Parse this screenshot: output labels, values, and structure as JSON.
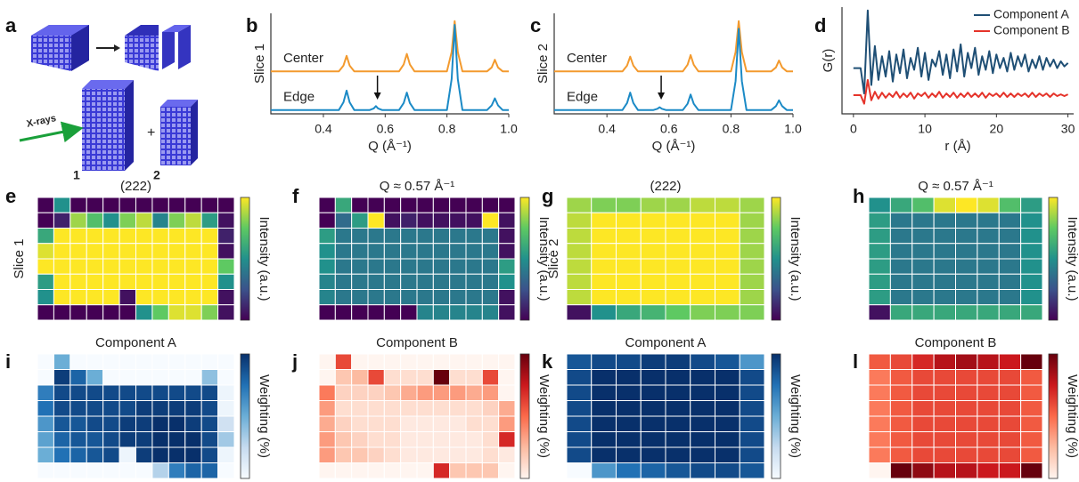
{
  "schematic": {
    "panel": "a",
    "xray_label": "X-rays",
    "slice_labels": [
      "1",
      "2"
    ],
    "plus": "+"
  },
  "chart_data": [
    {
      "type": "line",
      "panel": "b",
      "ylabel": "Slice 1",
      "xlabel": "Q (Å⁻¹)",
      "series_labels": "inline",
      "xlim": [
        0.23,
        1.0
      ],
      "ylim": [
        -0.1,
        2.5
      ],
      "xticks": [
        0.4,
        0.6,
        0.8,
        {
          "value": 1.0,
          "label": "1.0"
        }
      ],
      "arrow_x": [
        0.575
      ],
      "x": [
        0.23,
        0.45,
        0.465,
        0.475,
        0.485,
        0.5,
        0.55,
        0.563,
        0.57,
        0.577,
        0.59,
        0.645,
        0.66,
        0.67,
        0.68,
        0.695,
        0.8,
        0.815,
        0.825,
        0.835,
        0.85,
        0.93,
        0.945,
        0.955,
        0.965,
        0.98,
        1.0
      ],
      "series": [
        {
          "name": "Center",
          "color": "#f39a2e",
          "values": [
            1,
            1,
            1.15,
            1.4,
            1.15,
            1,
            1,
            1,
            1,
            1,
            1,
            1,
            1.18,
            1.45,
            1.18,
            1,
            1,
            1.5,
            2.3,
            1.5,
            1,
            1,
            1.1,
            1.3,
            1.1,
            1,
            1
          ]
        },
        {
          "name": "Edge",
          "color": "#1b8ac6",
          "values": [
            0,
            0,
            0.2,
            0.5,
            0.2,
            0,
            0,
            0.04,
            0.1,
            0.04,
            0,
            0,
            0.18,
            0.45,
            0.18,
            0,
            0,
            0.8,
            2.2,
            0.8,
            0,
            0,
            0.12,
            0.3,
            0.12,
            0,
            0
          ]
        }
      ]
    },
    {
      "type": "line",
      "panel": "c",
      "ylabel": "Slice 2",
      "xlabel": "Q (Å⁻¹)",
      "series_labels": "inline",
      "xlim": [
        0.23,
        1.0
      ],
      "ylim": [
        -0.1,
        2.5
      ],
      "xticks": [
        0.4,
        0.6,
        0.8,
        {
          "value": 1.0,
          "label": "1.0"
        }
      ],
      "arrow_x": [
        0.575
      ],
      "x": [
        0.23,
        0.45,
        0.465,
        0.475,
        0.485,
        0.5,
        0.55,
        0.563,
        0.57,
        0.577,
        0.59,
        0.645,
        0.66,
        0.67,
        0.68,
        0.695,
        0.8,
        0.815,
        0.825,
        0.835,
        0.85,
        0.93,
        0.945,
        0.955,
        0.965,
        0.98,
        1.0
      ],
      "series": [
        {
          "name": "Center",
          "color": "#f39a2e",
          "values": [
            1,
            1,
            1.15,
            1.38,
            1.15,
            1,
            1,
            1,
            1,
            1,
            1,
            1,
            1.17,
            1.42,
            1.17,
            1,
            1,
            1.5,
            2.3,
            1.5,
            1,
            1,
            1.1,
            1.28,
            1.1,
            1,
            1
          ]
        },
        {
          "name": "Edge",
          "color": "#1b8ac6",
          "values": [
            0,
            0,
            0.18,
            0.45,
            0.18,
            0,
            0,
            0.03,
            0.07,
            0.03,
            0,
            0,
            0.16,
            0.4,
            0.16,
            0,
            0,
            0.75,
            2.1,
            0.75,
            0,
            0,
            0.1,
            0.25,
            0.1,
            0,
            0
          ]
        }
      ]
    },
    {
      "type": "line",
      "panel": "d",
      "ylabel": "G(r)",
      "xlabel": "r (Å)",
      "legend": "upper right",
      "xlim": [
        -1.6,
        30.8
      ],
      "ylim": [
        -0.2,
        6.1
      ],
      "xticks": [
        0,
        10,
        20,
        30
      ],
      "x": [
        0,
        0.5,
        1,
        1.5,
        2,
        2.5,
        3,
        3.5,
        4,
        4.5,
        5,
        5.5,
        6,
        6.5,
        7,
        7.5,
        8,
        8.5,
        9,
        9.5,
        10,
        10.5,
        11,
        11.5,
        12,
        12.5,
        13,
        13.5,
        14,
        14.5,
        15,
        15.5,
        16,
        16.5,
        17,
        17.5,
        18,
        18.5,
        19,
        19.5,
        20,
        20.5,
        21,
        21.5,
        22,
        22.5,
        23,
        23.5,
        24,
        24.5,
        25,
        25.5,
        26,
        26.5,
        27,
        27.5,
        28,
        28.5,
        29,
        29.5,
        30
      ],
      "series": [
        {
          "name": "Component A",
          "color": "#1f4f75",
          "values": [
            2.5,
            2.5,
            2.5,
            1.0,
            5.9,
            1.5,
            3.8,
            1.8,
            3.2,
            2.0,
            3.5,
            1.7,
            3.3,
            2.2,
            3.6,
            1.9,
            3.1,
            2.4,
            3.7,
            2.0,
            3.4,
            1.8,
            3.0,
            2.6,
            3.5,
            2.1,
            3.3,
            1.9,
            3.6,
            2.3,
            3.9,
            2.0,
            3.4,
            2.5,
            3.7,
            2.1,
            3.2,
            2.4,
            3.5,
            2.2,
            3.3,
            2.5,
            3.1,
            2.3,
            3.4,
            2.4,
            3.2,
            2.6,
            3.3,
            2.3,
            3.0,
            2.5,
            3.2,
            2.4,
            3.1,
            2.6,
            3.0,
            2.5,
            2.9,
            2.6,
            2.8
          ]
        },
        {
          "name": "Component B",
          "color": "#e5332a",
          "values": [
            0.9,
            0.9,
            0.9,
            0.4,
            1.8,
            0.6,
            1.1,
            0.7,
            1.05,
            0.75,
            1.0,
            0.8,
            1.1,
            0.75,
            1.0,
            0.8,
            1.05,
            0.7,
            1.0,
            0.85,
            1.05,
            0.75,
            1.0,
            0.8,
            1.1,
            0.75,
            1.0,
            0.8,
            1.05,
            0.75,
            1.0,
            0.8,
            1.05,
            0.8,
            1.0,
            0.8,
            1.05,
            0.75,
            1.0,
            0.85,
            1.0,
            0.8,
            1.05,
            0.8,
            1.0,
            0.8,
            1.0,
            0.85,
            1.0,
            0.8,
            1.05,
            0.8,
            1.0,
            0.85,
            1.0,
            0.8,
            1.0,
            0.85,
            0.95,
            0.85,
            0.95
          ]
        }
      ]
    },
    {
      "type": "heatmap",
      "panel": "e",
      "title": "(222)",
      "ylabel": "Slice 1",
      "colorbar_label": "Intensity (a.u.)",
      "colormap": "viridis",
      "zlim": [
        0,
        1
      ],
      "values": [
        [
          0,
          0.5,
          0,
          0,
          0,
          0,
          0,
          0,
          0,
          0,
          0,
          0
        ],
        [
          0,
          0.1,
          0.85,
          0.7,
          0.5,
          0.8,
          0.9,
          0.45,
          0.8,
          0.9,
          0.55,
          0.05
        ],
        [
          0.6,
          1,
          1,
          1,
          1,
          1,
          1,
          1,
          1,
          1,
          1,
          0.1
        ],
        [
          0.95,
          1,
          1,
          1,
          1,
          1,
          1,
          1,
          1,
          1,
          1,
          0.05
        ],
        [
          1,
          1,
          1,
          1,
          1,
          1,
          1,
          1,
          1,
          1,
          1,
          0.75
        ],
        [
          0.55,
          1,
          1,
          1,
          1,
          1,
          1,
          1,
          1,
          1,
          1,
          0.5
        ],
        [
          0.5,
          1,
          1,
          1,
          1,
          0.05,
          1,
          1,
          1,
          1,
          1,
          0.05
        ],
        [
          0,
          0,
          0,
          0,
          0,
          0,
          0.5,
          0.75,
          0.95,
          0.95,
          0.8,
          0.05
        ]
      ]
    },
    {
      "type": "heatmap",
      "panel": "f",
      "title": "Q ≈ 0.57 Å⁻¹",
      "colorbar_label": "Intensity (a.u.)",
      "colormap": "viridis",
      "zlim": [
        0,
        1
      ],
      "values": [
        [
          0,
          0.6,
          0,
          0,
          0,
          0,
          0,
          0,
          0,
          0,
          0,
          0
        ],
        [
          0,
          0.35,
          0.55,
          1,
          0.05,
          0.1,
          0.05,
          0.05,
          0.05,
          0.05,
          1,
          0.05
        ],
        [
          0.55,
          0.4,
          0.4,
          0.4,
          0.4,
          0.4,
          0.4,
          0.4,
          0.4,
          0.4,
          0.4,
          0.05
        ],
        [
          0.5,
          0.4,
          0.4,
          0.4,
          0.4,
          0.4,
          0.4,
          0.4,
          0.4,
          0.4,
          0.4,
          0.05
        ],
        [
          0.5,
          0.4,
          0.4,
          0.4,
          0.4,
          0.4,
          0.4,
          0.4,
          0.4,
          0.4,
          0.4,
          0.55
        ],
        [
          0.45,
          0.4,
          0.4,
          0.4,
          0.4,
          0.4,
          0.4,
          0.4,
          0.4,
          0.4,
          0.4,
          0.5
        ],
        [
          0.45,
          0.4,
          0.4,
          0.4,
          0.4,
          0.4,
          0.4,
          0.4,
          0.4,
          0.4,
          0.4,
          0.05
        ],
        [
          0,
          0,
          0,
          0,
          0,
          0,
          0.45,
          0.45,
          0.45,
          0.45,
          0.45,
          0.05
        ]
      ]
    },
    {
      "type": "heatmap",
      "panel": "g",
      "title": "(222)",
      "ylabel": "Slice 2",
      "colorbar_label": "Intensity (a.u.)",
      "colormap": "viridis",
      "zlim": [
        0,
        1
      ],
      "values": [
        [
          0.85,
          0.8,
          0.8,
          0.85,
          0.85,
          0.9,
          0.9,
          0.85
        ],
        [
          0.9,
          1,
          1,
          1,
          1,
          1,
          1,
          0.85
        ],
        [
          0.9,
          1,
          1,
          1,
          1,
          1,
          1,
          0.85
        ],
        [
          0.9,
          1,
          1,
          1,
          1,
          1,
          1,
          0.85
        ],
        [
          0.9,
          1,
          1,
          1,
          1,
          1,
          1,
          0.85
        ],
        [
          0.9,
          1,
          1,
          1,
          1,
          1,
          1,
          0.85
        ],
        [
          0.9,
          1,
          1,
          1,
          1,
          1,
          1,
          0.85
        ],
        [
          0.05,
          0.5,
          0.6,
          0.65,
          0.75,
          0.8,
          0.8,
          0.8
        ]
      ]
    },
    {
      "type": "heatmap",
      "panel": "h",
      "title": "Q ≈ 0.57 Å⁻¹",
      "colorbar_label": "Intensity (a.u.)",
      "colormap": "viridis",
      "zlim": [
        0,
        1
      ],
      "values": [
        [
          0.5,
          0.6,
          0.7,
          0.95,
          1,
          0.95,
          0.7,
          0.55
        ],
        [
          0.55,
          0.4,
          0.4,
          0.4,
          0.4,
          0.4,
          0.4,
          0.5
        ],
        [
          0.55,
          0.4,
          0.4,
          0.4,
          0.4,
          0.4,
          0.4,
          0.5
        ],
        [
          0.55,
          0.4,
          0.4,
          0.4,
          0.4,
          0.4,
          0.4,
          0.5
        ],
        [
          0.55,
          0.4,
          0.4,
          0.4,
          0.4,
          0.4,
          0.4,
          0.5
        ],
        [
          0.55,
          0.4,
          0.4,
          0.4,
          0.4,
          0.4,
          0.4,
          0.5
        ],
        [
          0.55,
          0.4,
          0.4,
          0.4,
          0.4,
          0.4,
          0.4,
          0.5
        ],
        [
          0.05,
          0.6,
          0.6,
          0.6,
          0.6,
          0.6,
          0.6,
          0.6
        ]
      ]
    },
    {
      "type": "heatmap",
      "panel": "i",
      "title": "Component A",
      "colorbar_label": "Weighting (%)",
      "colormap": "Blues",
      "zlim": [
        0,
        1
      ],
      "values": [
        [
          0,
          0.5,
          0,
          0,
          0,
          0,
          0,
          0,
          0,
          0,
          0,
          0
        ],
        [
          0,
          0.95,
          0.8,
          0.5,
          0,
          0,
          0,
          0,
          0,
          0,
          0.4,
          0
        ],
        [
          0.7,
          0.9,
          0.9,
          0.9,
          0.9,
          0.9,
          0.9,
          0.9,
          0.9,
          0.9,
          0.9,
          0.05
        ],
        [
          0.75,
          0.9,
          0.9,
          0.9,
          0.9,
          0.9,
          0.95,
          0.95,
          0.95,
          0.95,
          0.9,
          0.05
        ],
        [
          0.6,
          0.85,
          0.85,
          0.9,
          0.9,
          0.95,
          0.95,
          1,
          1,
          0.95,
          0.9,
          0.2
        ],
        [
          0.55,
          0.8,
          0.85,
          0.85,
          0.9,
          0.95,
          0.95,
          1,
          1,
          1,
          0.9,
          0.35
        ],
        [
          0.5,
          0.75,
          0.8,
          0.85,
          0.9,
          0.05,
          0.95,
          1,
          1,
          1,
          0.9,
          0.05
        ],
        [
          0,
          0,
          0,
          0,
          0,
          0,
          0,
          0.3,
          0.7,
          0.8,
          0.8,
          0
        ]
      ]
    },
    {
      "type": "heatmap",
      "panel": "j",
      "title": "Component B",
      "colorbar_label": "Weighting (%)",
      "colormap": "Reds",
      "zlim": [
        0,
        1
      ],
      "values": [
        [
          0,
          0.6,
          0,
          0,
          0,
          0,
          0,
          0,
          0,
          0,
          0,
          0
        ],
        [
          0,
          0.2,
          0.25,
          0.6,
          0.1,
          0.1,
          0.1,
          1,
          0.1,
          0.1,
          0.6,
          0
        ],
        [
          0.45,
          0.15,
          0.15,
          0.15,
          0.2,
          0.3,
          0.35,
          0.35,
          0.35,
          0.3,
          0.35,
          0
        ],
        [
          0.35,
          0.1,
          0.1,
          0.1,
          0.1,
          0.1,
          0.1,
          0.1,
          0.1,
          0.1,
          0.15,
          0.3
        ],
        [
          0.3,
          0.15,
          0.1,
          0.1,
          0.1,
          0.05,
          0.05,
          0.05,
          0.05,
          0.1,
          0.1,
          0.35
        ],
        [
          0.35,
          0.2,
          0.15,
          0.1,
          0.1,
          0.05,
          0.05,
          0.05,
          0.05,
          0.05,
          0.1,
          0.7
        ],
        [
          0.35,
          0.2,
          0.2,
          0.15,
          0.1,
          0.05,
          0.05,
          0.05,
          0.05,
          0.05,
          0.1,
          0.05
        ],
        [
          0,
          0,
          0,
          0,
          0,
          0,
          0,
          0.7,
          0.2,
          0.2,
          0.2,
          0
        ]
      ]
    },
    {
      "type": "heatmap",
      "panel": "k",
      "title": "Component A",
      "colorbar_label": "Weighting (%)",
      "colormap": "Blues",
      "zlim": [
        0,
        1
      ],
      "values": [
        [
          0.85,
          0.9,
          0.9,
          0.95,
          0.95,
          0.9,
          0.85,
          0.6
        ],
        [
          0.9,
          1,
          1,
          1,
          1,
          1,
          1,
          0.9
        ],
        [
          0.9,
          1,
          1,
          1,
          1,
          1,
          1,
          0.9
        ],
        [
          0.9,
          1,
          1,
          1,
          1,
          1,
          1,
          0.9
        ],
        [
          0.9,
          1,
          1,
          1,
          1,
          1,
          1,
          0.9
        ],
        [
          0.9,
          1,
          1,
          1,
          1,
          1,
          1,
          0.9
        ],
        [
          0.9,
          1,
          1,
          1,
          1,
          1,
          1,
          0.9
        ],
        [
          0,
          0.6,
          0.75,
          0.8,
          0.85,
          0.9,
          0.9,
          0.85
        ]
      ]
    },
    {
      "type": "heatmap",
      "panel": "l",
      "title": "Component B",
      "colorbar_label": "Weighting (%)",
      "colormap": "Reds",
      "zlim": [
        0,
        1
      ],
      "values": [
        [
          0.55,
          0.6,
          0.7,
          0.8,
          0.85,
          0.8,
          0.75,
          1
        ],
        [
          0.45,
          0.55,
          0.6,
          0.6,
          0.6,
          0.6,
          0.6,
          0.55
        ],
        [
          0.45,
          0.55,
          0.6,
          0.6,
          0.6,
          0.6,
          0.6,
          0.55
        ],
        [
          0.45,
          0.55,
          0.6,
          0.6,
          0.6,
          0.6,
          0.6,
          0.55
        ],
        [
          0.45,
          0.55,
          0.6,
          0.6,
          0.6,
          0.6,
          0.6,
          0.55
        ],
        [
          0.45,
          0.55,
          0.6,
          0.6,
          0.6,
          0.6,
          0.6,
          0.55
        ],
        [
          0.45,
          0.55,
          0.6,
          0.6,
          0.6,
          0.6,
          0.6,
          0.55
        ],
        [
          0,
          1,
          0.9,
          0.8,
          0.8,
          0.75,
          0.75,
          1
        ]
      ]
    }
  ]
}
